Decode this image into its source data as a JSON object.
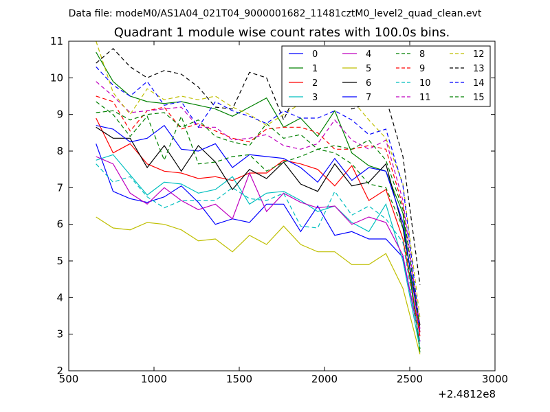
{
  "chart_data": {
    "type": "line",
    "suptitle": "Data file: modeM0/AS1A04_021T04_9000001682_11481cztM0_level2_quad_clean.evt",
    "title": "Quadrant 1 module wise count rates with 100.0s bins.",
    "xlabel": "",
    "ylabel": "",
    "x_offset_label": "+2.4812e8",
    "xlim": [
      500,
      3000
    ],
    "ylim": [
      2,
      11
    ],
    "xticks": [
      "500",
      "1000",
      "1500",
      "2000",
      "2500",
      "3000"
    ],
    "yticks": [
      "2",
      "3",
      "4",
      "5",
      "6",
      "7",
      "8",
      "9",
      "10",
      "11"
    ],
    "grid": false,
    "legend_position": "top-right",
    "x": [
      660,
      760,
      860,
      960,
      1060,
      1160,
      1260,
      1360,
      1460,
      1560,
      1660,
      1760,
      1860,
      1960,
      2060,
      2160,
      2260,
      2360,
      2460,
      2560
    ],
    "series": [
      {
        "name": "0",
        "color": "#0000ff",
        "style": "solid",
        "values": [
          8.2,
          6.9,
          6.7,
          6.6,
          6.75,
          7.05,
          6.6,
          6.0,
          6.15,
          6.05,
          6.55,
          6.55,
          5.8,
          6.5,
          5.7,
          5.8,
          5.6,
          5.6,
          5.1,
          2.8
        ]
      },
      {
        "name": "1",
        "color": "#008000",
        "style": "solid",
        "values": [
          10.7,
          9.9,
          9.5,
          9.35,
          9.3,
          9.35,
          9.25,
          9.15,
          8.95,
          9.2,
          9.45,
          8.65,
          8.9,
          8.4,
          9.1,
          7.95,
          7.6,
          7.45,
          6.3,
          2.5
        ]
      },
      {
        "name": "2",
        "color": "#ff0000",
        "style": "solid",
        "values": [
          8.9,
          7.95,
          8.2,
          7.65,
          7.45,
          7.4,
          7.25,
          7.3,
          7.2,
          7.4,
          7.4,
          7.75,
          7.65,
          7.5,
          7.05,
          7.6,
          6.65,
          6.95,
          5.6,
          2.95
        ]
      },
      {
        "name": "3",
        "color": "#00bfbf",
        "style": "solid",
        "values": [
          7.75,
          7.9,
          7.35,
          6.8,
          7.15,
          7.1,
          6.85,
          6.95,
          7.3,
          6.55,
          6.85,
          6.9,
          6.65,
          6.35,
          6.5,
          6.05,
          5.8,
          6.55,
          5.0,
          2.6
        ]
      },
      {
        "name": "4",
        "color": "#bf00bf",
        "style": "solid",
        "values": [
          7.85,
          7.65,
          6.85,
          6.55,
          7.0,
          6.65,
          6.4,
          6.55,
          6.15,
          7.4,
          6.35,
          6.85,
          6.6,
          6.45,
          6.5,
          6.0,
          6.2,
          6.05,
          5.15,
          2.8
        ]
      },
      {
        "name": "5",
        "color": "#bfbf00",
        "style": "solid",
        "values": [
          6.2,
          5.9,
          5.85,
          6.05,
          6.0,
          5.85,
          5.55,
          5.6,
          5.25,
          5.7,
          5.45,
          5.95,
          5.45,
          5.25,
          5.25,
          4.9,
          4.9,
          5.2,
          4.25,
          2.45
        ]
      },
      {
        "name": "6",
        "color": "#000000",
        "style": "solid",
        "values": [
          8.65,
          8.35,
          8.35,
          7.55,
          8.15,
          7.45,
          8.15,
          7.7,
          6.95,
          7.5,
          7.25,
          7.7,
          7.1,
          6.9,
          7.65,
          7.05,
          7.15,
          7.65,
          5.9,
          3.25
        ]
      },
      {
        "name": "7",
        "color": "#0000ff",
        "style": "solid",
        "values": [
          8.7,
          8.6,
          8.25,
          8.35,
          8.7,
          8.05,
          8.0,
          8.2,
          7.55,
          7.9,
          7.85,
          7.8,
          7.55,
          7.15,
          7.8,
          7.2,
          7.55,
          7.45,
          6.05,
          3.05
        ]
      },
      {
        "name": "8",
        "color": "#008000",
        "style": "dashed",
        "values": [
          9.35,
          9.0,
          8.4,
          8.95,
          7.75,
          8.95,
          7.65,
          7.7,
          7.85,
          7.9,
          7.45,
          7.7,
          7.85,
          8.05,
          7.95,
          7.65,
          7.1,
          7.0,
          5.9,
          2.6
        ]
      },
      {
        "name": "9",
        "color": "#ff0000",
        "style": "dashed",
        "values": [
          9.5,
          9.35,
          8.55,
          9.1,
          9.2,
          8.6,
          8.75,
          8.55,
          8.35,
          8.25,
          8.6,
          8.65,
          8.65,
          8.5,
          8.05,
          8.05,
          8.15,
          8.05,
          6.5,
          3.05
        ]
      },
      {
        "name": "10",
        "color": "#00bfbf",
        "style": "dashed",
        "values": [
          7.65,
          7.15,
          7.3,
          6.75,
          6.45,
          6.65,
          6.65,
          6.65,
          7.0,
          6.7,
          6.65,
          6.85,
          5.95,
          5.9,
          6.9,
          6.25,
          6.5,
          6.15,
          5.5,
          2.75
        ]
      },
      {
        "name": "11",
        "color": "#bf00bf",
        "style": "dashed",
        "values": [
          9.9,
          9.5,
          9.05,
          9.1,
          9.15,
          9.2,
          8.65,
          8.65,
          8.3,
          8.35,
          8.45,
          8.15,
          8.05,
          8.2,
          8.85,
          8.3,
          8.05,
          8.3,
          6.65,
          3.15
        ]
      },
      {
        "name": "12",
        "color": "#bfbf00",
        "style": "dashed",
        "values": [
          11.0,
          9.6,
          9.0,
          9.7,
          9.4,
          9.5,
          9.4,
          9.5,
          9.2,
          9.0,
          8.7,
          9.0,
          9.3,
          9.55,
          9.6,
          9.4,
          8.85,
          8.35,
          7.1,
          3.45
        ]
      },
      {
        "name": "13",
        "color": "#000000",
        "style": "dashed",
        "values": [
          10.4,
          10.8,
          10.3,
          10.0,
          10.2,
          10.1,
          9.75,
          9.2,
          9.15,
          10.15,
          10.0,
          8.85,
          9.85,
          9.4,
          9.75,
          9.15,
          9.3,
          9.45,
          7.85,
          4.35
        ]
      },
      {
        "name": "14",
        "color": "#0000ff",
        "style": "dashed",
        "values": [
          10.3,
          9.8,
          9.5,
          9.9,
          9.25,
          9.35,
          8.65,
          9.35,
          9.1,
          8.95,
          8.75,
          9.1,
          8.9,
          8.9,
          9.1,
          8.85,
          8.45,
          8.6,
          7.05,
          3.15
        ]
      },
      {
        "name": "15",
        "color": "#008000",
        "style": "dashed",
        "values": [
          9.05,
          9.1,
          8.85,
          9.0,
          9.05,
          8.65,
          8.85,
          8.4,
          8.25,
          8.15,
          8.75,
          8.35,
          8.45,
          8.05,
          8.15,
          8.05,
          8.3,
          7.75,
          6.4,
          3.15
        ]
      }
    ]
  }
}
